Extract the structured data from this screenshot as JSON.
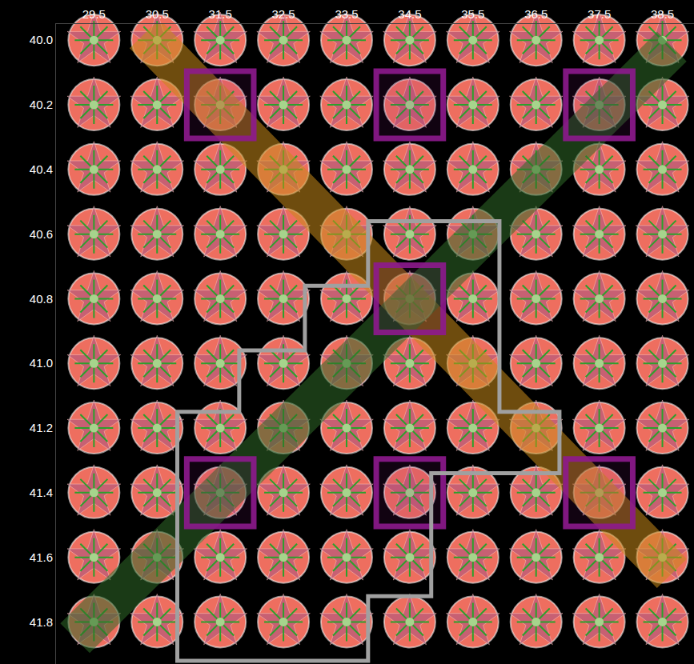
{
  "chart_data": {
    "type": "scatter",
    "marker": "circle",
    "color": "#ee6e5f",
    "x": [
      29.5,
      30.5,
      31.5,
      32.5,
      33.5,
      34.5,
      35.5,
      36.5,
      37.5,
      38.5
    ],
    "y": [
      40.0,
      40.2,
      40.4,
      40.6,
      40.8,
      41.0,
      41.2,
      41.4,
      41.6,
      41.8
    ],
    "xlim": [
      28.9,
      39.0
    ],
    "ylim": [
      41.93,
      39.95
    ],
    "xticks": [
      29.5,
      30.5,
      31.5,
      32.5,
      33.5,
      34.5,
      35.5,
      36.5,
      37.5,
      38.5
    ],
    "yticks": [
      {
        "value": 40,
        "label": "40.0"
      },
      40.2,
      40.4,
      40.6,
      40.8,
      {
        "value": 41,
        "label": "41.0"
      },
      41.2,
      41.4,
      41.6,
      41.8
    ],
    "bands": [
      {
        "color": "#c98a1a",
        "from": [
          30.3,
          39.98
        ],
        "to": [
          38.65,
          41.65
        ]
      },
      {
        "color": "#2f6a28",
        "from": [
          29.2,
          41.85
        ],
        "to": [
          38.65,
          40.02
        ]
      }
    ],
    "highlights": {
      "color": "#8e1a8e",
      "points": [
        [
          31.5,
          40.2
        ],
        [
          34.5,
          40.2
        ],
        [
          37.5,
          40.2
        ],
        [
          34.5,
          40.8
        ],
        [
          31.5,
          41.4
        ],
        [
          34.5,
          41.4
        ],
        [
          37.5,
          41.4
        ]
      ]
    },
    "outline": {
      "color": "#a0a0a0",
      "x": [
        33.84,
        35.92,
        35.92,
        36.87,
        36.87,
        34.84,
        34.84,
        33.84,
        33.84,
        30.82,
        30.82,
        31.8,
        31.8,
        32.84,
        32.84,
        33.84
      ],
      "y": [
        40.56,
        40.56,
        41.15,
        41.15,
        41.34,
        41.34,
        41.72,
        41.72,
        41.92,
        41.92,
        41.15,
        41.15,
        40.96,
        40.96,
        40.76,
        40.76
      ]
    }
  }
}
